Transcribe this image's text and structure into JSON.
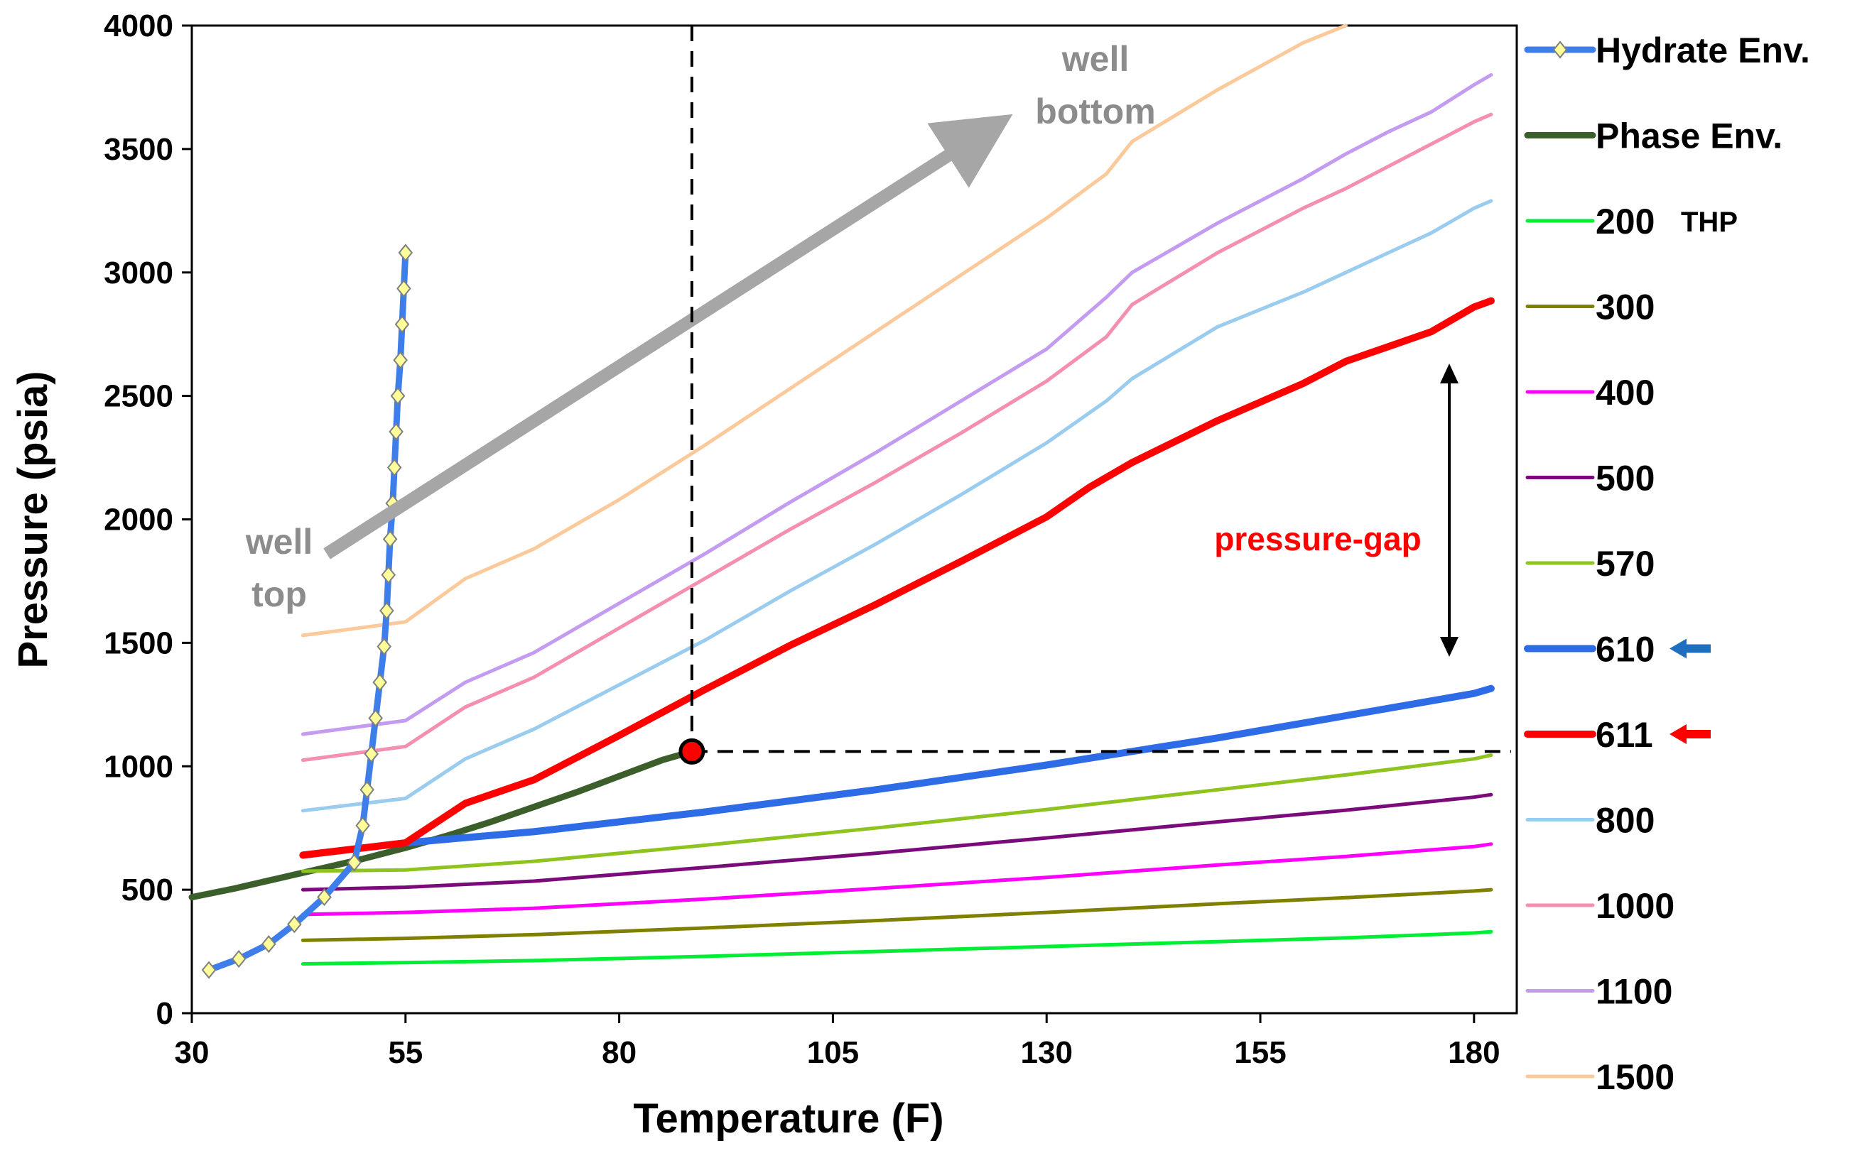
{
  "chart_data": {
    "type": "line",
    "xlabel": "Temperature (F)",
    "ylabel": "Pressure (psia)",
    "xlim": [
      30,
      185
    ],
    "ylim": [
      0,
      4000
    ],
    "xticks": [
      30,
      55,
      80,
      105,
      130,
      155,
      180
    ],
    "yticks": [
      0,
      500,
      1000,
      1500,
      2000,
      2500,
      3000,
      3500,
      4000
    ],
    "legend_position": "right",
    "thp_label": "THP",
    "series": [
      {
        "name": "Hydrate Env.",
        "color": "#3d7eea",
        "marker": "diamond",
        "x": [
          32.0,
          35.5,
          39.0,
          42.0,
          45.5,
          49.0,
          50.0,
          50.5,
          51.0,
          51.5,
          52.0,
          52.5,
          52.8,
          53.0,
          53.2,
          53.5,
          53.7,
          53.9,
          54.1,
          54.4,
          54.6,
          54.8,
          55.0
        ],
        "y": [
          175,
          220,
          280,
          360,
          470,
          610,
          760,
          905,
          1050,
          1195,
          1340,
          1485,
          1630,
          1775,
          1920,
          2065,
          2210,
          2355,
          2500,
          2645,
          2790,
          2935,
          3080
        ]
      },
      {
        "name": "Phase Env.",
        "color": "#3b5e2b",
        "x": [
          30,
          35,
          40,
          45,
          50,
          55,
          60,
          65,
          70,
          75,
          80,
          85,
          88.5
        ],
        "y": [
          470,
          505,
          545,
          585,
          625,
          670,
          720,
          775,
          835,
          895,
          960,
          1025,
          1060
        ]
      },
      {
        "name": "200",
        "color": "#00ee33",
        "x": [
          43,
          55,
          70,
          90,
          110,
          130,
          150,
          165,
          180,
          182
        ],
        "y": [
          200,
          205,
          213,
          230,
          250,
          270,
          290,
          305,
          325,
          330
        ]
      },
      {
        "name": "300",
        "color": "#808000",
        "x": [
          43,
          55,
          70,
          90,
          110,
          130,
          150,
          165,
          180,
          182
        ],
        "y": [
          295,
          303,
          318,
          345,
          375,
          408,
          443,
          468,
          495,
          500
        ]
      },
      {
        "name": "400",
        "color": "#ff00ff",
        "x": [
          43,
          55,
          70,
          90,
          110,
          130,
          150,
          165,
          180,
          182
        ],
        "y": [
          400,
          408,
          425,
          462,
          505,
          550,
          600,
          635,
          675,
          685
        ]
      },
      {
        "name": "500",
        "color": "#7b0a7b",
        "x": [
          43,
          55,
          70,
          90,
          110,
          130,
          150,
          165,
          180,
          182
        ],
        "y": [
          500,
          510,
          535,
          590,
          648,
          710,
          775,
          822,
          875,
          885
        ]
      },
      {
        "name": "570",
        "color": "#8fc31f",
        "x": [
          43,
          55,
          70,
          90,
          110,
          130,
          150,
          165,
          180,
          182
        ],
        "y": [
          575,
          580,
          615,
          680,
          750,
          825,
          905,
          965,
          1030,
          1045
        ]
      },
      {
        "name": "610",
        "color": "#2e6be6",
        "x": [
          43,
          55,
          70,
          90,
          110,
          130,
          150,
          165,
          180,
          182
        ],
        "y": [
          640,
          690,
          735,
          815,
          905,
          1005,
          1115,
          1205,
          1295,
          1315
        ]
      },
      {
        "name": "611",
        "color": "#ff0000",
        "x": [
          43,
          55,
          62,
          70,
          80,
          90,
          100,
          110,
          120,
          130,
          135,
          140,
          150,
          160,
          165,
          170,
          175,
          180,
          182
        ],
        "y": [
          640,
          690,
          850,
          945,
          1125,
          1310,
          1490,
          1655,
          1830,
          2010,
          2130,
          2230,
          2400,
          2550,
          2640,
          2700,
          2760,
          2860,
          2885
        ]
      },
      {
        "name": "800",
        "color": "#99ccee",
        "x": [
          43,
          55,
          62,
          70,
          80,
          90,
          100,
          110,
          120,
          130,
          137,
          140,
          150,
          160,
          165,
          170,
          175,
          180,
          182
        ],
        "y": [
          820,
          870,
          1030,
          1150,
          1330,
          1510,
          1710,
          1900,
          2100,
          2310,
          2480,
          2570,
          2780,
          2920,
          3000,
          3080,
          3160,
          3260,
          3290
        ]
      },
      {
        "name": "1000",
        "color": "#f48fb1",
        "x": [
          43,
          55,
          62,
          70,
          80,
          90,
          100,
          110,
          120,
          130,
          137,
          140,
          150,
          160,
          165,
          170,
          175,
          180,
          182
        ],
        "y": [
          1025,
          1080,
          1240,
          1360,
          1560,
          1760,
          1960,
          2150,
          2350,
          2560,
          2740,
          2870,
          3080,
          3260,
          3340,
          3430,
          3520,
          3610,
          3640
        ]
      },
      {
        "name": "1100",
        "color": "#c39bf0",
        "x": [
          43,
          55,
          62,
          70,
          80,
          90,
          100,
          110,
          120,
          130,
          137,
          140,
          150,
          160,
          165,
          170,
          175,
          180,
          182
        ],
        "y": [
          1130,
          1185,
          1340,
          1460,
          1660,
          1860,
          2070,
          2270,
          2480,
          2690,
          2900,
          3000,
          3200,
          3380,
          3480,
          3570,
          3650,
          3760,
          3800
        ]
      },
      {
        "name": "1500",
        "color": "#fcc99b",
        "x": [
          43,
          55,
          62,
          70,
          80,
          90,
          100,
          110,
          120,
          130,
          137,
          140,
          150,
          160,
          165
        ],
        "y": [
          1530,
          1585,
          1760,
          1880,
          2080,
          2300,
          2530,
          2760,
          2990,
          3220,
          3400,
          3530,
          3740,
          3930,
          4000
        ]
      }
    ],
    "annotations": {
      "well_top": "well\ntop",
      "well_bottom": "well\nbottom",
      "pressure_gap": "pressure-gap",
      "marker_point": {
        "x": 88.5,
        "y": 1060
      }
    }
  }
}
